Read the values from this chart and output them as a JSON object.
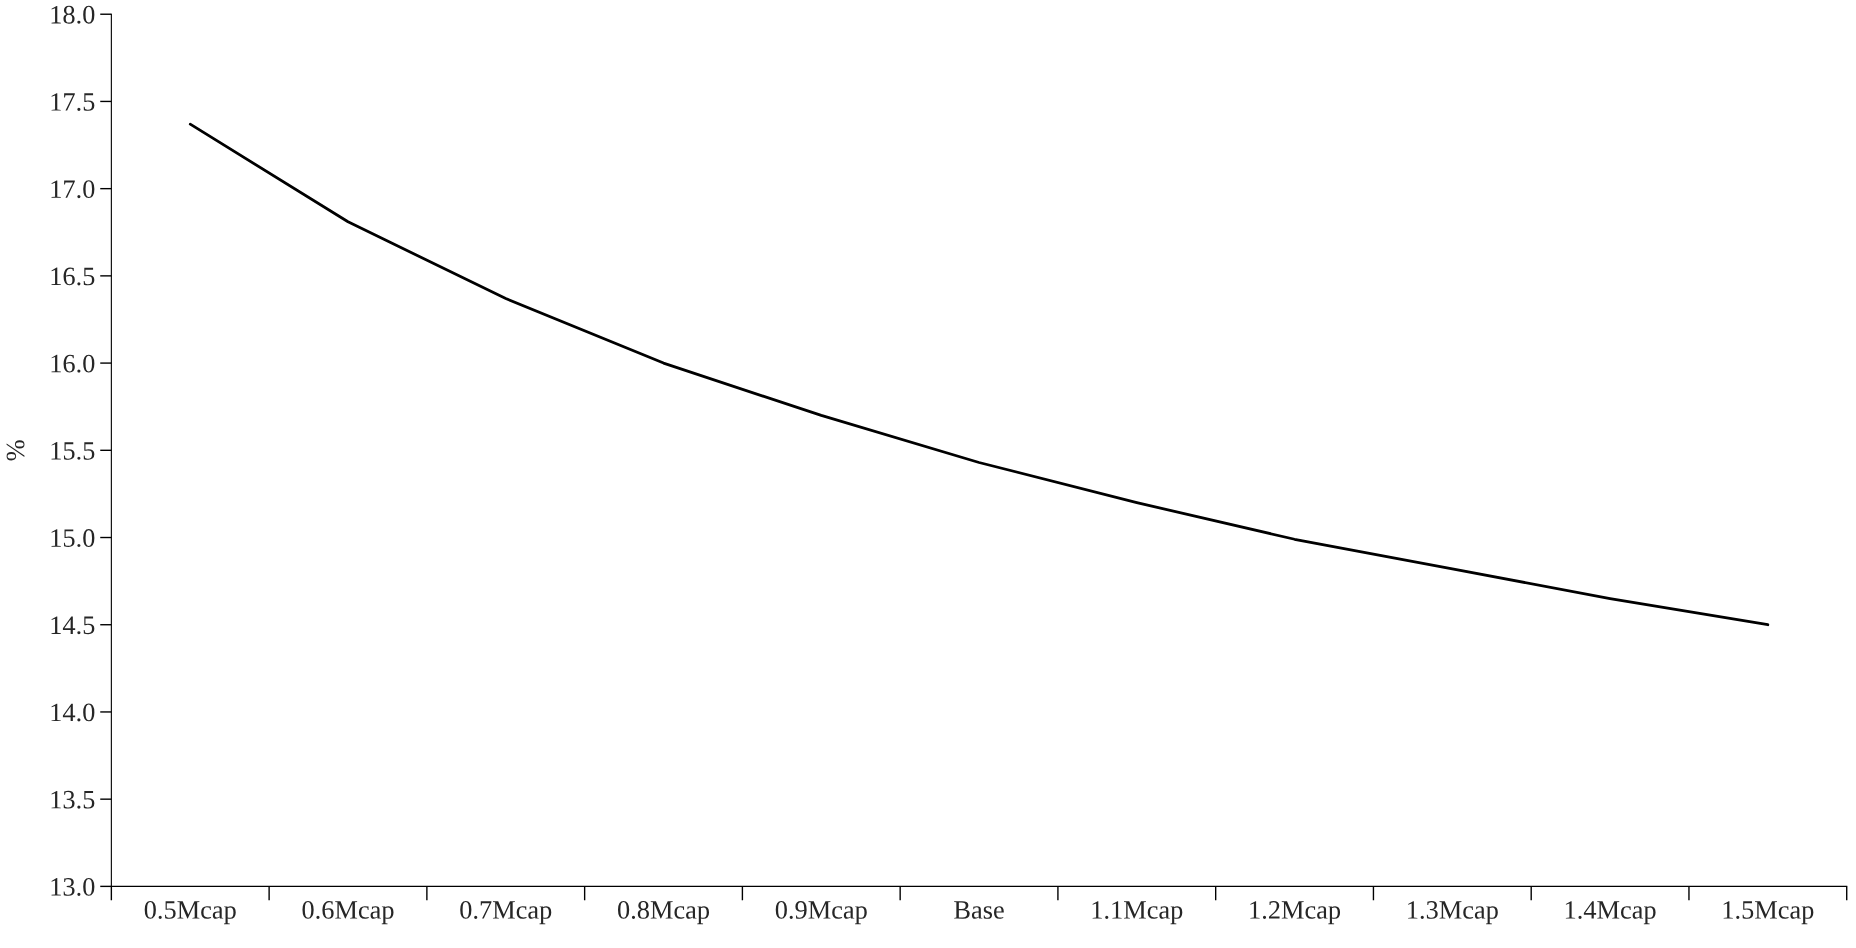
{
  "chart_data": {
    "type": "line",
    "ylabel": "%",
    "categories": [
      "0.5Mcap",
      "0.6Mcap",
      "0.7Mcap",
      "0.8Mcap",
      "0.9Mcap",
      "Base",
      "1.1Mcap",
      "1.2Mcap",
      "1.3Mcap",
      "1.4Mcap",
      "1.5Mcap"
    ],
    "series": [
      {
        "color": "#000000",
        "values": [
          17.37,
          16.81,
          16.37,
          16.0,
          15.7,
          15.43,
          15.2,
          14.99,
          14.82,
          14.65,
          14.5
        ]
      }
    ],
    "ylim": [
      13.0,
      18.0
    ],
    "yticks": [
      {
        "value": 13.0,
        "label": "13.0"
      },
      {
        "value": 13.5,
        "label": "13.5"
      },
      {
        "value": 14.0,
        "label": "14.0"
      },
      {
        "value": 14.5,
        "label": "14.5"
      },
      {
        "value": 15.0,
        "label": "15.0"
      },
      {
        "value": 15.5,
        "label": "15.5"
      },
      {
        "value": 16.0,
        "label": "16.0"
      },
      {
        "value": 16.5,
        "label": "16.5"
      },
      {
        "value": 17.0,
        "label": "17.0"
      },
      {
        "value": 17.5,
        "label": "17.5"
      },
      {
        "value": 18.0,
        "label": "18.0"
      }
    ],
    "grid": false,
    "marker": "none",
    "line_style": "solid"
  }
}
